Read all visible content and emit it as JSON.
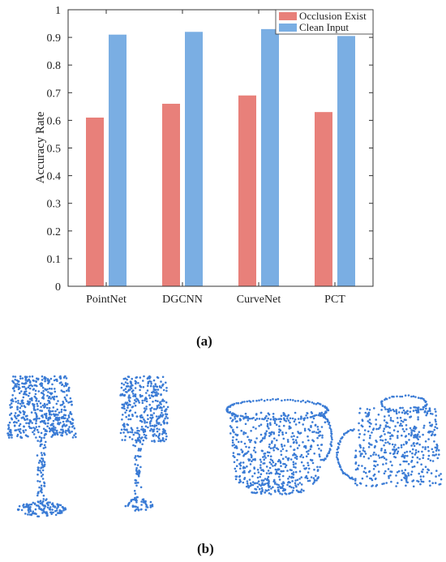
{
  "chart_data": {
    "type": "bar",
    "categories": [
      "PointNet",
      "DGCNN",
      "CurveNet",
      "PCT"
    ],
    "series": [
      {
        "name": "Occlusion Exist",
        "values": [
          0.61,
          0.66,
          0.69,
          0.63
        ],
        "color": "#e8807a"
      },
      {
        "name": "Clean Input",
        "values": [
          0.91,
          0.92,
          0.93,
          0.905
        ],
        "color": "#7aaee3"
      }
    ],
    "xlabel": "",
    "ylabel": "Accuracy Rate",
    "ylim": [
      0,
      1
    ],
    "yticks": [
      0,
      0.1,
      0.2,
      0.3,
      0.4,
      0.5,
      0.6,
      0.7,
      0.8,
      0.9,
      1
    ],
    "ytick_labels": [
      "0",
      "0.1",
      "0.2",
      "0.3",
      "0.4",
      "0.5",
      "0.6",
      "0.7",
      "0.8",
      "0.9",
      "1"
    ],
    "grid": false,
    "legend_position": "top-right"
  },
  "captions": {
    "a": "(a)",
    "b": "(b)"
  },
  "point_clouds": {
    "color": "#3a7bd5",
    "objects": [
      "lamp-complete",
      "lamp-occluded",
      "mug-complete",
      "mug-occluded"
    ]
  }
}
